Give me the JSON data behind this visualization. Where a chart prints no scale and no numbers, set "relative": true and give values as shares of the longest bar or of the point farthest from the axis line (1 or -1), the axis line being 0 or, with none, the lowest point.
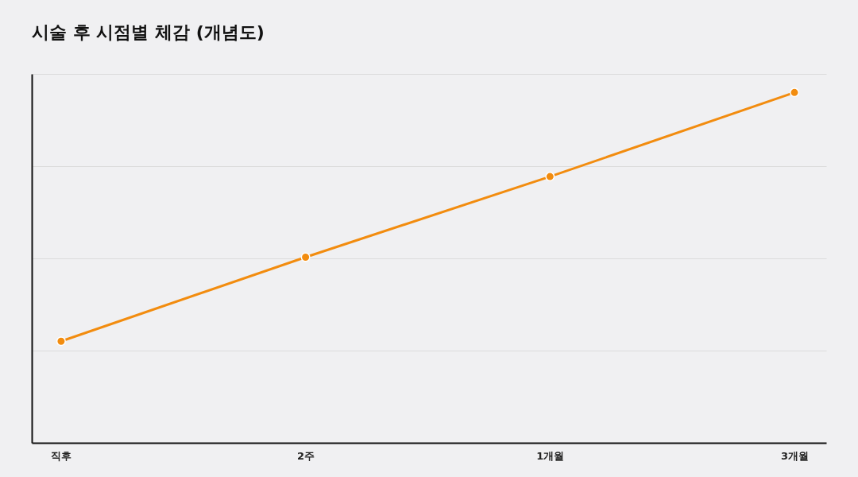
{
  "chart_data": {
    "type": "line",
    "title": "시술 후 시점별 체감 (개념도)",
    "categories": [
      "직후",
      "2주",
      "1개월",
      "3개월"
    ],
    "series": [
      {
        "color": "#f28c0f",
        "values": [
          0.29,
          0.53,
          0.76,
          1
        ]
      }
    ],
    "relative": true,
    "grid": "y",
    "marker": "circle",
    "line_style": "solid"
  }
}
